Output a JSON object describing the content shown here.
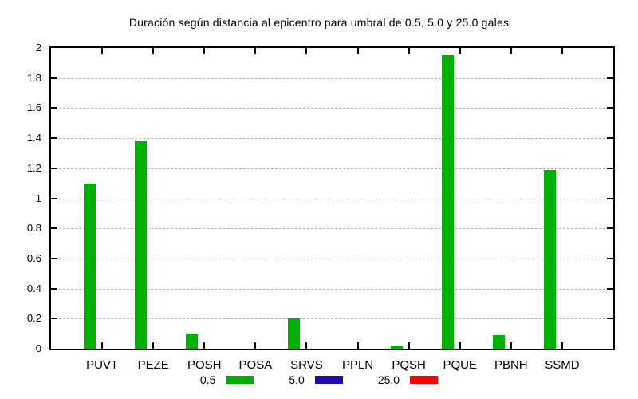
{
  "chart_data": {
    "type": "bar",
    "title": "Duración según distancia al epicentro para umbral de 0.5, 5.0 y 25.0 gales",
    "categories": [
      "PUVT",
      "PEZE",
      "POSH",
      "POSA",
      "SRVS",
      "PPLN",
      "PQSH",
      "PQUE",
      "PBNH",
      "SSMD"
    ],
    "series": [
      {
        "name": "0.5",
        "color": "#00b000",
        "values": [
          1.1,
          1.38,
          0.1,
          0,
          0.2,
          0,
          0.02,
          1.95,
          0.09,
          1.19
        ]
      },
      {
        "name": "5.0",
        "color": "#2209aa",
        "values": [
          0,
          0,
          0,
          0,
          0,
          0,
          0,
          0,
          0,
          0
        ]
      },
      {
        "name": "25.0",
        "color": "#ff0000",
        "values": [
          0,
          0,
          0,
          0,
          0,
          0,
          0,
          0,
          0,
          0
        ]
      }
    ],
    "xlabel": "",
    "ylabel": "",
    "ylim": [
      0,
      2
    ],
    "ytick_step": 0.2,
    "ytick_labels": [
      "0",
      "0.2",
      "0.4",
      "0.6",
      "0.8",
      "1",
      "1.2",
      "1.4",
      "1.6",
      "1.8",
      "2"
    ],
    "grid": "horizontal-dashed",
    "grid_color": "#b3b3b3",
    "legend_position": "bottom-center",
    "background": "#ffffff"
  }
}
